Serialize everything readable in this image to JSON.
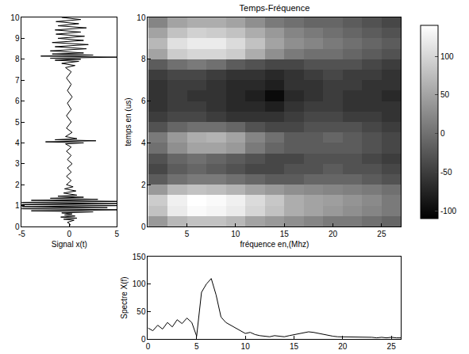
{
  "chart_data": [
    {
      "type": "line",
      "x_label": "Signal x(t)",
      "color": "#000000",
      "grid": false,
      "x": [
        0,
        0.1,
        -0.2,
        0.5,
        -0.6,
        0.8,
        -0.9,
        0.6,
        -0.5,
        0.3,
        -0.8,
        2.5,
        -4,
        6,
        -6,
        4,
        -5,
        6,
        -6,
        5,
        -6,
        6,
        -4,
        3,
        -2,
        1.5,
        -1.2,
        0.8,
        -0.6,
        0.7,
        -0.5,
        0.4,
        -0.3,
        0.2,
        -0.3,
        0.2,
        -0.2,
        0.3,
        -0.2,
        0.2,
        -0.3,
        0.2,
        -0.4,
        1.5,
        -2.5,
        2.8,
        -1.5,
        0.8,
        -0.4,
        0.3,
        -0.3,
        0.2,
        -0.3,
        0.2,
        -0.2,
        0.3,
        -0.2,
        0.2,
        -0.3,
        0.2,
        -0.4,
        0.6,
        -0.8,
        1.0,
        -1.5,
        1.2,
        -2,
        5,
        -3,
        2.5,
        -1.8,
        1.5,
        -2,
        1.8,
        -1.5,
        2,
        -1.8,
        1.5,
        -1.2,
        1.6,
        -1.4,
        1.2,
        -1.5,
        1.8,
        -1.2,
        1.0,
        -1.4,
        1.2,
        -0.8
      ],
      "y": [
        0,
        0.1,
        0.2,
        0.3,
        0.35,
        0.4,
        0.45,
        0.5,
        0.55,
        0.6,
        0.65,
        0.7,
        0.75,
        0.8,
        0.85,
        0.9,
        0.95,
        1.0,
        1.05,
        1.1,
        1.15,
        1.2,
        1.25,
        1.3,
        1.35,
        1.4,
        1.45,
        1.5,
        1.6,
        1.7,
        1.8,
        1.9,
        2.0,
        2.2,
        2.4,
        2.6,
        2.8,
        3.0,
        3.2,
        3.4,
        3.6,
        3.8,
        3.95,
        4.0,
        4.05,
        4.1,
        4.15,
        4.2,
        4.3,
        4.5,
        4.7,
        5.0,
        5.3,
        5.6,
        5.9,
        6.2,
        6.5,
        6.8,
        7.1,
        7.4,
        7.6,
        7.7,
        7.8,
        7.9,
        7.95,
        8.0,
        8.05,
        8.1,
        8.15,
        8.2,
        8.25,
        8.3,
        8.4,
        8.5,
        8.6,
        8.7,
        8.8,
        8.9,
        9.0,
        9.1,
        9.2,
        9.3,
        9.4,
        9.5,
        9.6,
        9.7,
        9.8,
        9.9,
        10.0
      ],
      "xlim": [
        -5,
        5
      ],
      "xticks": [
        -5,
        0,
        5
      ],
      "ylim": [
        0,
        10
      ],
      "yticks": [
        0,
        1,
        2,
        3,
        4,
        5,
        6,
        7,
        8,
        9,
        10
      ]
    },
    {
      "type": "heatmap",
      "title": "Temps-Fréquence",
      "x_label": "fréquence en,(Mhz)",
      "y_label": "temps en (us)",
      "colors": [
        "#000000",
        "#ffffff"
      ],
      "grid": false,
      "x": [
        2,
        4,
        6,
        8,
        10,
        12,
        14,
        16,
        18,
        20,
        22,
        24,
        26
      ],
      "y": [
        0.25,
        0.75,
        1.25,
        1.75,
        2.25,
        2.75,
        3.25,
        3.75,
        4.25,
        4.75,
        5.25,
        5.75,
        6.25,
        6.75,
        7.25,
        7.75,
        8.25,
        8.75,
        9.25,
        9.75
      ],
      "z": [
        [
          40,
          70,
          80,
          80,
          70,
          50,
          40,
          30,
          20,
          10,
          10,
          0,
          -10
        ],
        [
          80,
          120,
          135,
          130,
          120,
          100,
          80,
          60,
          50,
          40,
          30,
          20,
          10
        ],
        [
          90,
          125,
          140,
          135,
          125,
          105,
          85,
          60,
          50,
          45,
          35,
          25,
          10
        ],
        [
          40,
          70,
          80,
          75,
          65,
          50,
          40,
          30,
          25,
          20,
          15,
          10,
          0
        ],
        [
          -20,
          0,
          10,
          10,
          0,
          -10,
          -20,
          -20,
          -10,
          -10,
          -10,
          -20,
          -30
        ],
        [
          -40,
          -20,
          -10,
          -20,
          -30,
          -40,
          -40,
          -30,
          -30,
          -20,
          -30,
          -30,
          -40
        ],
        [
          -30,
          -10,
          0,
          -10,
          -20,
          -30,
          -40,
          -40,
          -30,
          -30,
          -30,
          -40,
          -50
        ],
        [
          0,
          30,
          50,
          50,
          40,
          10,
          -10,
          -20,
          -20,
          -20,
          -20,
          -30,
          -40
        ],
        [
          10,
          40,
          60,
          65,
          50,
          20,
          0,
          -20,
          -20,
          -10,
          -20,
          -30,
          -40
        ],
        [
          -30,
          -10,
          0,
          0,
          -10,
          -30,
          -40,
          -40,
          -30,
          -30,
          -30,
          -40,
          -50
        ],
        [
          -50,
          -40,
          -40,
          -50,
          -60,
          -60,
          -60,
          -50,
          -40,
          -40,
          -50,
          -50,
          -60
        ],
        [
          -60,
          -50,
          -50,
          -60,
          -70,
          -70,
          -80,
          -60,
          -50,
          -50,
          -60,
          -60,
          -60
        ],
        [
          -60,
          -50,
          -60,
          -60,
          -70,
          -80,
          -100,
          -70,
          -60,
          -50,
          -60,
          -60,
          -70
        ],
        [
          -60,
          -50,
          -50,
          -60,
          -70,
          -70,
          -80,
          -60,
          -60,
          -50,
          -50,
          -60,
          -60
        ],
        [
          -50,
          -40,
          -40,
          -50,
          -60,
          -60,
          -70,
          -60,
          -50,
          -40,
          -50,
          -50,
          -60
        ],
        [
          -20,
          0,
          10,
          0,
          -20,
          -30,
          -40,
          -40,
          -30,
          -30,
          -30,
          -40,
          -50
        ],
        [
          50,
          90,
          100,
          100,
          90,
          60,
          30,
          10,
          0,
          0,
          -10,
          -20,
          -30
        ],
        [
          70,
          110,
          120,
          120,
          105,
          80,
          50,
          30,
          20,
          10,
          0,
          -10,
          -20
        ],
        [
          50,
          80,
          95,
          90,
          80,
          60,
          40,
          20,
          10,
          0,
          -10,
          -20,
          -30
        ],
        [
          20,
          50,
          60,
          60,
          50,
          30,
          10,
          0,
          -10,
          -10,
          -20,
          -30,
          -40
        ]
      ],
      "xlim": [
        1,
        27
      ],
      "xticks": [
        5,
        10,
        15,
        20,
        25
      ],
      "ylim": [
        0,
        10
      ],
      "yticks": [
        0,
        2,
        4,
        6,
        8,
        10
      ],
      "zlim": [
        -110,
        140
      ],
      "zticks": [
        -100,
        -50,
        0,
        50,
        100
      ]
    },
    {
      "type": "line",
      "y_label": "Spectre X(f)",
      "color": "#000000",
      "grid": false,
      "x": [
        0,
        0.5,
        1,
        1.5,
        2,
        2.5,
        3,
        3.5,
        4,
        4.5,
        5,
        5.5,
        6,
        6.5,
        7,
        7.5,
        8,
        8.5,
        9,
        9.5,
        10,
        10.5,
        11,
        11.5,
        12,
        12.5,
        13,
        13.5,
        14,
        14.5,
        15,
        15.5,
        16,
        16.5,
        17,
        17.5,
        18,
        18.5,
        19,
        19.5,
        20,
        20.5,
        21,
        21.5,
        22,
        22.5,
        23,
        23.5,
        24,
        24.5,
        25,
        25.5,
        26
      ],
      "y": [
        20,
        15,
        25,
        18,
        30,
        22,
        35,
        28,
        38,
        30,
        5,
        85,
        100,
        110,
        80,
        40,
        30,
        25,
        20,
        15,
        10,
        12,
        8,
        6,
        5,
        4,
        6,
        5,
        4,
        6,
        8,
        10,
        12,
        13,
        12,
        10,
        8,
        6,
        5,
        4,
        4,
        3,
        4,
        3,
        3,
        4,
        3,
        2,
        3,
        2,
        3,
        2,
        2
      ],
      "xlim": [
        0,
        26
      ],
      "xticks": [
        0,
        5,
        10,
        15,
        20,
        25
      ],
      "ylim": [
        0,
        150
      ],
      "yticks": [
        0,
        50,
        100,
        150
      ]
    }
  ]
}
